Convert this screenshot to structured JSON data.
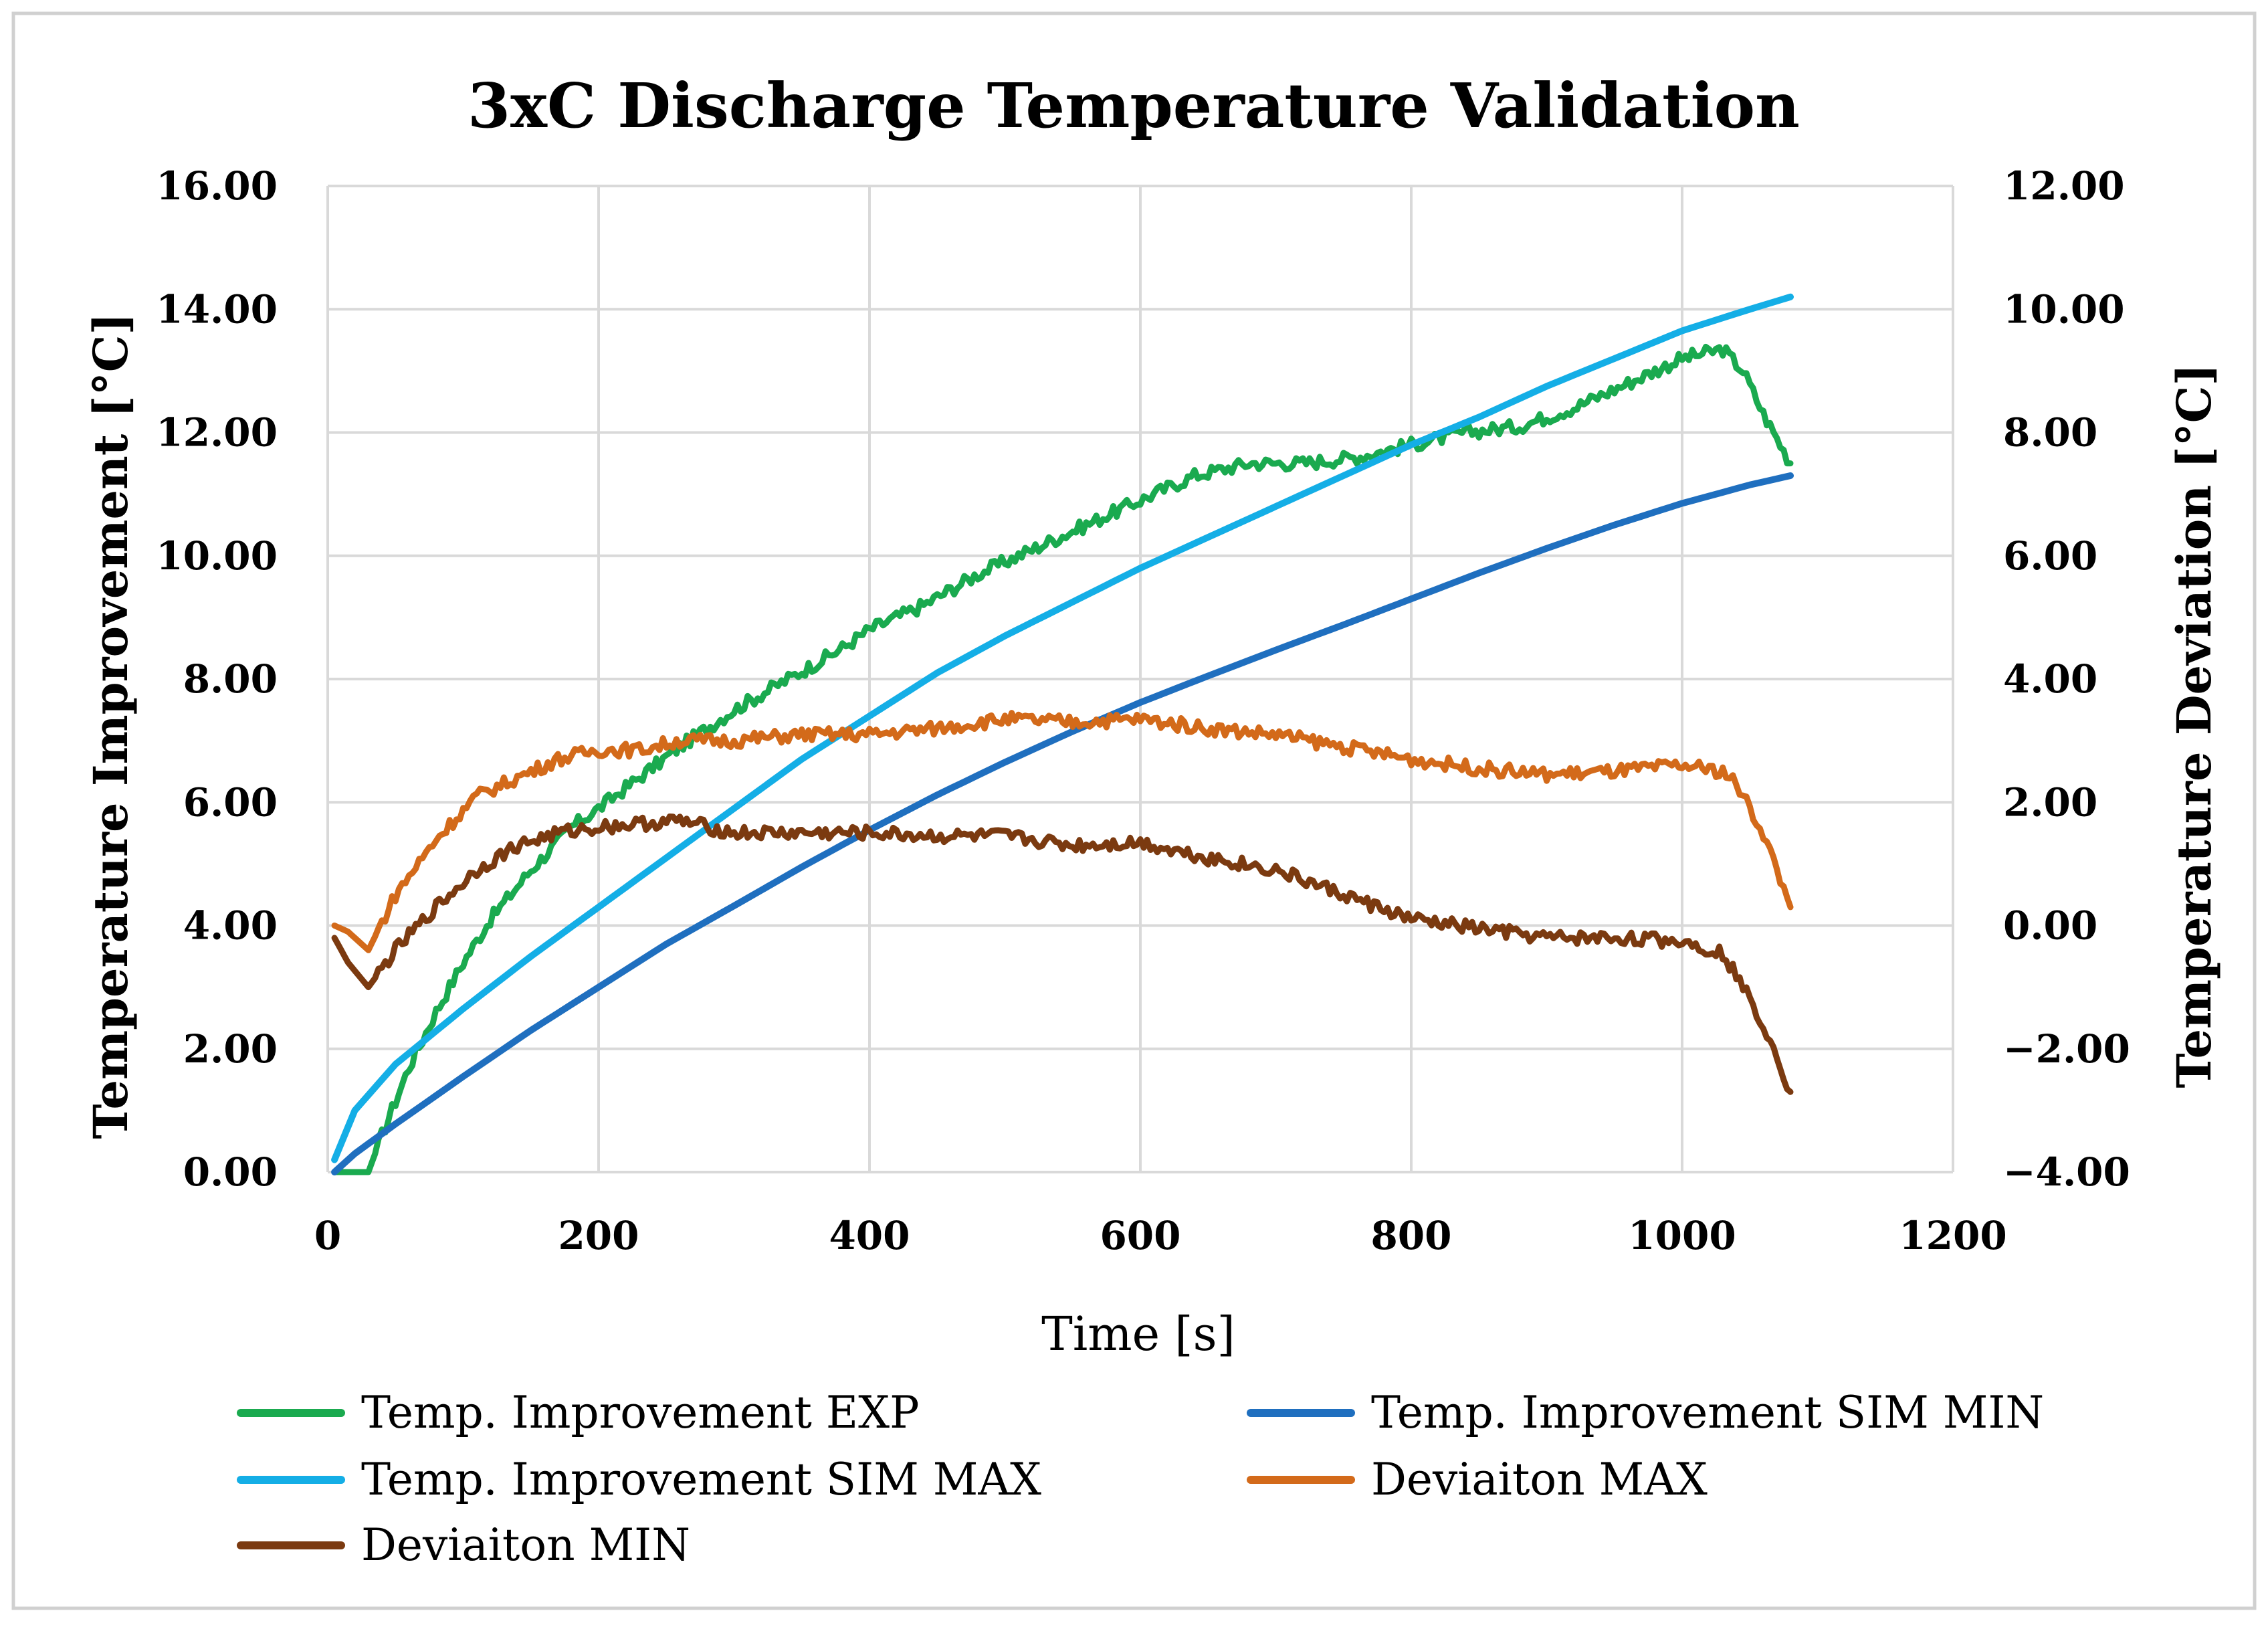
{
  "chart_data": {
    "type": "line",
    "title": "3xC Discharge Temperature Validation",
    "xlabel": "Time [s]",
    "ylabel": "Temperature Improvement [°C]",
    "y2label": "Temperature Deviation [°C]",
    "xlim": [
      0,
      1200
    ],
    "ylim": [
      0,
      16
    ],
    "y2lim": [
      -4,
      12
    ],
    "grid": true,
    "legend_position": "bottom",
    "x_ticks": [
      "0",
      "200",
      "400",
      "600",
      "800",
      "1000",
      "1200"
    ],
    "x_tick_values": [
      0,
      200,
      400,
      600,
      800,
      1000,
      1200
    ],
    "y_ticks": [
      "0.00",
      "2.00",
      "4.00",
      "6.00",
      "8.00",
      "10.00",
      "12.00",
      "14.00",
      "16.00"
    ],
    "y_tick_values": [
      0,
      2,
      4,
      6,
      8,
      10,
      12,
      14,
      16
    ],
    "y2_ticks": [
      "−4.00",
      "−2.00",
      "0.00",
      "2.00",
      "4.00",
      "6.00",
      "8.00",
      "10.00",
      "12.00"
    ],
    "y2_tick_values": [
      -4,
      -2,
      0,
      2,
      4,
      6,
      8,
      10,
      12
    ],
    "series": [
      {
        "name": "Temp. Improvement EXP",
        "axis": "left",
        "color": "#1aaa4f",
        "x": [
          5,
          30,
          40,
          60,
          80,
          100,
          120,
          150,
          180,
          200,
          230,
          260,
          300,
          340,
          380,
          400,
          440,
          480,
          520,
          560,
          600,
          640,
          680,
          720,
          760,
          800,
          840,
          880,
          920,
          960,
          1000,
          1030,
          1045,
          1060,
          1080
        ],
        "y": [
          0.0,
          0.0,
          0.6,
          1.7,
          2.6,
          3.4,
          4.1,
          4.9,
          5.6,
          5.9,
          6.4,
          6.9,
          7.5,
          8.0,
          8.5,
          8.8,
          9.2,
          9.7,
          10.1,
          10.5,
          10.9,
          11.3,
          11.5,
          11.5,
          11.6,
          11.8,
          12.0,
          12.1,
          12.4,
          12.8,
          13.2,
          13.35,
          13.0,
          12.3,
          11.5
        ]
      },
      {
        "name": "Temp. Improvement SIM MIN",
        "axis": "left",
        "color": "#1f6fbf",
        "x": [
          5,
          20,
          50,
          100,
          150,
          200,
          250,
          300,
          350,
          400,
          450,
          500,
          550,
          600,
          650,
          700,
          750,
          800,
          850,
          900,
          950,
          1000,
          1050,
          1080
        ],
        "y": [
          0.0,
          0.3,
          0.78,
          1.55,
          2.3,
          3.0,
          3.7,
          4.32,
          4.95,
          5.55,
          6.12,
          6.65,
          7.15,
          7.62,
          8.05,
          8.47,
          8.88,
          9.3,
          9.72,
          10.12,
          10.5,
          10.85,
          11.15,
          11.3
        ]
      },
      {
        "name": "Temp. Improvement SIM MAX",
        "axis": "left",
        "color": "#14aee6",
        "x": [
          5,
          20,
          50,
          100,
          150,
          200,
          250,
          300,
          350,
          400,
          450,
          500,
          550,
          600,
          650,
          700,
          750,
          800,
          850,
          900,
          950,
          1000,
          1050,
          1080
        ],
        "y": [
          0.2,
          1.0,
          1.75,
          2.65,
          3.5,
          4.3,
          5.1,
          5.9,
          6.7,
          7.4,
          8.1,
          8.7,
          9.25,
          9.8,
          10.3,
          10.8,
          11.3,
          11.8,
          12.25,
          12.75,
          13.2,
          13.65,
          14.0,
          14.2
        ]
      },
      {
        "name": "Deviaiton MAX",
        "axis": "right",
        "color": "#d36a1a",
        "x": [
          5,
          15,
          30,
          50,
          80,
          110,
          140,
          170,
          200,
          230,
          260,
          300,
          350,
          400,
          450,
          500,
          550,
          600,
          650,
          700,
          750,
          800,
          850,
          900,
          950,
          1000,
          1030,
          1040,
          1060,
          1070,
          1080
        ],
        "y": [
          0.0,
          -0.1,
          -0.4,
          0.5,
          1.4,
          2.1,
          2.4,
          2.7,
          2.85,
          2.85,
          3.0,
          3.0,
          3.1,
          3.1,
          3.2,
          3.35,
          3.3,
          3.35,
          3.2,
          3.1,
          2.9,
          2.7,
          2.55,
          2.45,
          2.5,
          2.6,
          2.5,
          2.3,
          1.5,
          0.9,
          0.3
        ]
      },
      {
        "name": "Deviaiton MIN",
        "axis": "right",
        "color": "#7b3a10",
        "x": [
          5,
          15,
          30,
          50,
          80,
          110,
          140,
          170,
          200,
          230,
          260,
          300,
          350,
          400,
          450,
          500,
          550,
          600,
          650,
          700,
          750,
          800,
          850,
          900,
          950,
          1000,
          1030,
          1040,
          1060,
          1070,
          1080
        ],
        "y": [
          -0.2,
          -0.6,
          -1.0,
          -0.4,
          0.3,
          0.9,
          1.3,
          1.5,
          1.6,
          1.65,
          1.7,
          1.5,
          1.5,
          1.5,
          1.45,
          1.45,
          1.3,
          1.35,
          1.1,
          0.9,
          0.5,
          0.1,
          -0.05,
          -0.2,
          -0.2,
          -0.25,
          -0.45,
          -0.8,
          -1.6,
          -2.1,
          -2.7
        ]
      }
    ]
  }
}
